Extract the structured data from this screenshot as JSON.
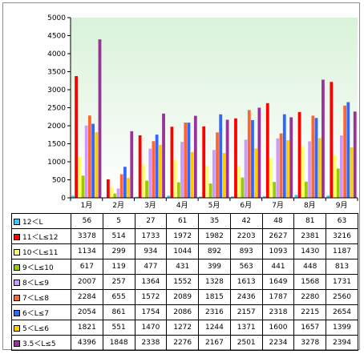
{
  "chart_data": {
    "type": "bar",
    "categories": [
      "1月",
      "2月",
      "3月",
      "4月",
      "5月",
      "6月",
      "7月",
      "8月",
      "9月"
    ],
    "y_ticks": [
      "0",
      "500",
      "1000",
      "1500",
      "2000",
      "2500",
      "3000",
      "3500",
      "4000",
      "4500",
      "5000"
    ],
    "ylim": [
      0,
      5000
    ],
    "grid": false,
    "legend_position": "table-below",
    "series": [
      {
        "name": "12＜L",
        "color": "#33ccff",
        "values": [
          56,
          5,
          27,
          61,
          35,
          42,
          48,
          81,
          63
        ]
      },
      {
        "name": "11＜L≤12",
        "color": "#ff0000",
        "values": [
          3378,
          514,
          1733,
          1972,
          1982,
          2203,
          2627,
          2381,
          3216
        ]
      },
      {
        "name": "10＜L≤11",
        "color": "#ffff66",
        "values": [
          1134,
          299,
          934,
          1044,
          892,
          893,
          1093,
          1430,
          1187
        ]
      },
      {
        "name": "9＜L≤10",
        "color": "#99cc00",
        "values": [
          617,
          119,
          477,
          431,
          399,
          563,
          441,
          448,
          813
        ]
      },
      {
        "name": "8＜L≤9",
        "color": "#cc99ff",
        "values": [
          2007,
          257,
          1364,
          1552,
          1328,
          1613,
          1649,
          1568,
          1731
        ]
      },
      {
        "name": "7＜L≤8",
        "color": "#ff6633",
        "values": [
          2284,
          655,
          1572,
          2089,
          1815,
          2436,
          1787,
          2280,
          2560
        ]
      },
      {
        "name": "6＜L≤7",
        "color": "#3366ff",
        "values": [
          2054,
          861,
          1754,
          2086,
          2316,
          2157,
          2318,
          2215,
          2654
        ]
      },
      {
        "name": "5＜L≤6",
        "color": "#ffcc00",
        "values": [
          1821,
          551,
          1470,
          1272,
          1244,
          1371,
          1600,
          1657,
          1399
        ]
      },
      {
        "name": "3.5＜L≤5",
        "color": "#993399",
        "values": [
          4396,
          1848,
          2338,
          2276,
          2167,
          2501,
          2234,
          3278,
          2394
        ]
      }
    ]
  }
}
